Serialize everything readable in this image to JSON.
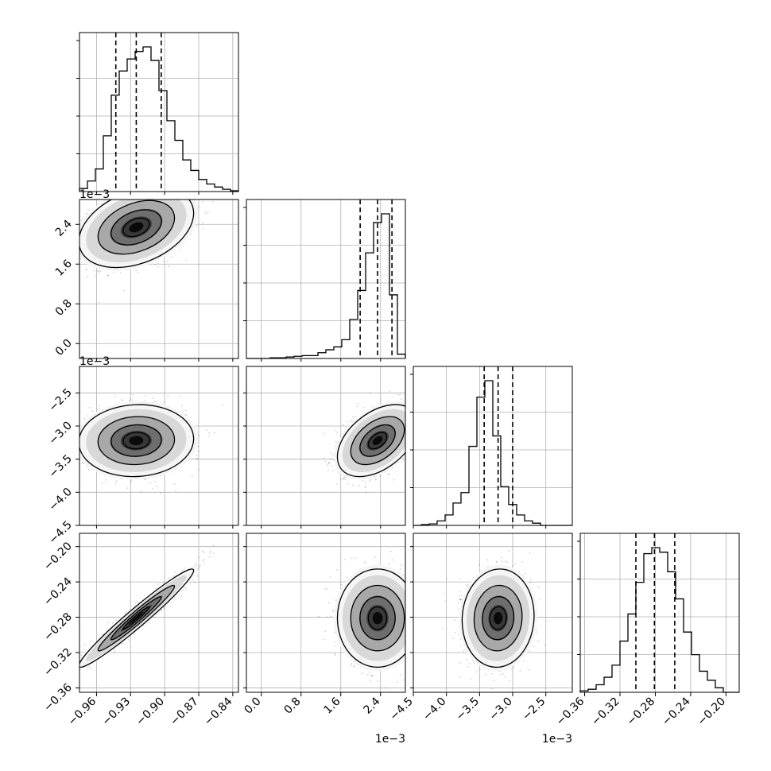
{
  "chart_data": {
    "type": "corner",
    "grid": true,
    "parameters": [
      {
        "range": [
          -0.975,
          -0.835
        ],
        "ticks": [
          -0.96,
          -0.93,
          -0.9,
          -0.87,
          -0.84
        ],
        "tick_labels": [
          "−0.96",
          "−0.93",
          "−0.90",
          "−0.87",
          "−0.84"
        ],
        "offset_label": "",
        "hist_counts": [
          0.02,
          0.07,
          0.15,
          0.37,
          0.64,
          0.8,
          0.88,
          0.93,
          0.96,
          0.87,
          0.67,
          0.47,
          0.34,
          0.21,
          0.14,
          0.08,
          0.05,
          0.03,
          0.015,
          0.005
        ],
        "quantiles": [
          -0.943,
          -0.925,
          -0.903
        ]
      },
      {
        "range": [
          -0.3,
          2.9
        ],
        "ticks": [
          0.0,
          0.8,
          1.6,
          2.4
        ],
        "tick_labels": [
          "0.0",
          "0.8",
          "1.6",
          "2.4"
        ],
        "offset_label": "1e−3",
        "hist_counts": [
          0.0,
          0.0,
          0.0,
          0.005,
          0.005,
          0.01,
          0.015,
          0.02,
          0.02,
          0.04,
          0.06,
          0.08,
          0.13,
          0.27,
          0.47,
          0.73,
          0.94,
          1.0,
          0.44,
          0.03
        ],
        "quantiles": [
          1.99,
          2.34,
          2.63
        ]
      },
      {
        "range": [
          -4.5,
          -2.1
        ],
        "ticks": [
          -4.5,
          -4.0,
          -3.5,
          -3.0,
          -2.5
        ],
        "tick_labels": [
          "−4.5",
          "−4.0",
          "−3.5",
          "−3.0",
          "−2.5"
        ],
        "offset_label": "1e−3",
        "hist_counts": [
          0.0,
          0.005,
          0.01,
          0.03,
          0.07,
          0.15,
          0.22,
          0.53,
          0.86,
          0.97,
          0.6,
          0.26,
          0.14,
          0.07,
          0.03,
          0.015,
          0.0,
          0.0,
          0.0,
          0.0
        ],
        "quantiles": [
          -3.43,
          -3.22,
          -3.0
        ]
      },
      {
        "range": [
          -0.365,
          -0.185
        ],
        "ticks": [
          -0.36,
          -0.32,
          -0.28,
          -0.24,
          -0.2
        ],
        "tick_labels": [
          "−0.36",
          "−0.32",
          "−0.28",
          "−0.24",
          "−0.20"
        ],
        "offset_label": "",
        "hist_counts": [
          0.01,
          0.02,
          0.05,
          0.1,
          0.18,
          0.34,
          0.52,
          0.73,
          0.92,
          0.96,
          0.93,
          0.8,
          0.62,
          0.4,
          0.25,
          0.14,
          0.08,
          0.03,
          0.0,
          0.0
        ],
        "quantiles": [
          -0.302,
          -0.281,
          -0.258
        ]
      }
    ],
    "correlations": {
      "1_0": 0.35,
      "2_0": 0.05,
      "2_1": 0.45,
      "3_0": 0.97,
      "3_1": 0.0,
      "3_2": 0.05
    },
    "styles": {
      "line_color": "#000000",
      "grid_color": "#b0b0b0",
      "scatter_color": "#000000",
      "density_levels": [
        "#f5f5f5",
        "#d8d8d8",
        "#a8a8a8",
        "#6e6e6e",
        "#383838",
        "#0a0a0a"
      ]
    }
  }
}
